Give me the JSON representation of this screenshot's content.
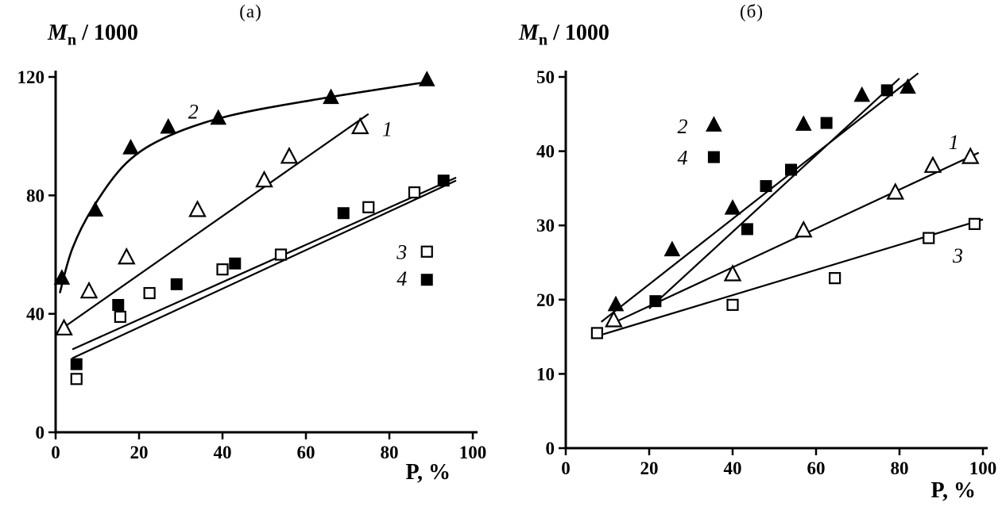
{
  "page": {
    "background": "#ffffff",
    "ink": "#000000"
  },
  "chart_data": [
    {
      "type": "scatter",
      "panel_label": "(а)",
      "xlabel": "P, %",
      "ylabel": "Mn / 1000",
      "y_title": {
        "symbol": "M",
        "subscript": "n",
        "rest": " / 1000"
      },
      "x_label": "P, %",
      "xlim": [
        0,
        100
      ],
      "ylim": [
        0,
        120
      ],
      "xticks": [
        0,
        20,
        40,
        60,
        80,
        100
      ],
      "yticks": [
        0,
        40,
        80,
        120
      ],
      "legend_position": "inside-right",
      "series": [
        {
          "name": "1",
          "marker": "triangle-open",
          "line": "straight",
          "points": [
            [
              2,
              35
            ],
            [
              8,
              47.5
            ],
            [
              17,
              59
            ],
            [
              34,
              75
            ],
            [
              50,
              85
            ],
            [
              56,
              93
            ],
            [
              73,
              103
            ]
          ],
          "line_points": [
            [
              2,
              35.5
            ],
            [
              75,
              107.5
            ]
          ]
        },
        {
          "name": "2",
          "marker": "triangle-filled",
          "line": "smooth",
          "points": [
            [
              1.5,
              52
            ],
            [
              9.5,
              75
            ],
            [
              18,
              96
            ],
            [
              27,
              103
            ],
            [
              39,
              106
            ],
            [
              66,
              113
            ],
            [
              89,
              119
            ]
          ],
          "line_points": [
            [
              1,
              47
            ],
            [
              4,
              62
            ],
            [
              9,
              76
            ],
            [
              17,
              91
            ],
            [
              27,
              100
            ],
            [
              42,
              107
            ],
            [
              65,
              113
            ],
            [
              90,
              118.5
            ]
          ]
        },
        {
          "name": "3",
          "marker": "square-open",
          "line": "straight",
          "points": [
            [
              5,
              18
            ],
            [
              15.5,
              39
            ],
            [
              22.5,
              47
            ],
            [
              40,
              55
            ],
            [
              54,
              60
            ],
            [
              75,
              76
            ],
            [
              86,
              81
            ]
          ],
          "line_points": [
            [
              4,
              25
            ],
            [
              96,
              85
            ]
          ]
        },
        {
          "name": "4",
          "marker": "square-filled",
          "line": "straight",
          "points": [
            [
              5,
              23
            ],
            [
              15,
              43
            ],
            [
              29,
              50
            ],
            [
              43,
              57
            ],
            [
              69,
              74
            ],
            [
              93,
              85
            ]
          ],
          "line_points": [
            [
              4,
              28
            ],
            [
              96,
              86
            ]
          ]
        }
      ],
      "annotations": [
        {
          "text": "2",
          "x": 33,
          "y": 106
        },
        {
          "text": "1",
          "x": 79.5,
          "y": 100
        }
      ],
      "legend": [
        {
          "label": "3",
          "marker": "square-open",
          "label_x": 83,
          "label_y": 58.5,
          "marker_x": 89,
          "marker_y": 61
        },
        {
          "label": "4",
          "marker": "square-filled",
          "label_x": 83,
          "label_y": 49.5,
          "marker_x": 89,
          "marker_y": 51.5
        }
      ]
    },
    {
      "type": "scatter",
      "panel_label": "(б)",
      "xlabel": "P, %",
      "ylabel": "Mn / 1000",
      "y_title": {
        "symbol": "M",
        "subscript": "n",
        "rest": " / 1000"
      },
      "x_label": "P, %",
      "xlim": [
        0,
        100
      ],
      "ylim": [
        0,
        50
      ],
      "xticks": [
        0,
        20,
        40,
        60,
        80,
        100
      ],
      "yticks": [
        0,
        10,
        20,
        30,
        40,
        50
      ],
      "legend_position": "inside-top-left",
      "series": [
        {
          "name": "1",
          "marker": "triangle-open",
          "line": "straight",
          "points": [
            [
              11.5,
              17.2
            ],
            [
              40,
              23.4
            ],
            [
              57,
              29.3
            ],
            [
              79,
              34.4
            ],
            [
              88,
              38
            ],
            [
              97,
              39.2
            ]
          ],
          "line_points": [
            [
              10,
              16.5
            ],
            [
              99,
              39.8
            ]
          ]
        },
        {
          "name": "2",
          "marker": "triangle-filled",
          "line": "straight",
          "points": [
            [
              12,
              19.3
            ],
            [
              25.5,
              26.7
            ],
            [
              40,
              32.3
            ],
            [
              57,
              43.6
            ],
            [
              71,
              47.5
            ],
            [
              82,
              48.6
            ]
          ],
          "line_points": [
            [
              8.5,
              17
            ],
            [
              84.5,
              50.5
            ]
          ]
        },
        {
          "name": "3",
          "marker": "square-open",
          "line": "straight",
          "points": [
            [
              7.5,
              15.5
            ],
            [
              40,
              19.3
            ],
            [
              64.5,
              22.9
            ],
            [
              87,
              28.3
            ],
            [
              98,
              30.2
            ]
          ],
          "line_points": [
            [
              7,
              15
            ],
            [
              100,
              30.8
            ]
          ]
        },
        {
          "name": "4",
          "marker": "square-filled",
          "line": "straight",
          "points": [
            [
              21.5,
              19.8
            ],
            [
              43.5,
              29.5
            ],
            [
              48,
              35.3
            ],
            [
              54,
              37.5
            ],
            [
              62.5,
              43.8
            ],
            [
              77,
              48.2
            ]
          ],
          "line_points": [
            [
              20,
              18.8
            ],
            [
              80,
              49.8
            ]
          ]
        }
      ],
      "annotations": [
        {
          "text": "1",
          "x": 93,
          "y": 40.3
        },
        {
          "text": "3",
          "x": 94,
          "y": 25
        }
      ],
      "legend": [
        {
          "label": "2",
          "marker": "triangle-filled",
          "label_x": 28,
          "label_y": 42.4,
          "marker_x": 35.5,
          "marker_y": 43.5
        },
        {
          "label": "4",
          "marker": "square-filled",
          "label_x": 28,
          "label_y": 38.2,
          "marker_x": 35.5,
          "marker_y": 39.2
        }
      ]
    }
  ]
}
